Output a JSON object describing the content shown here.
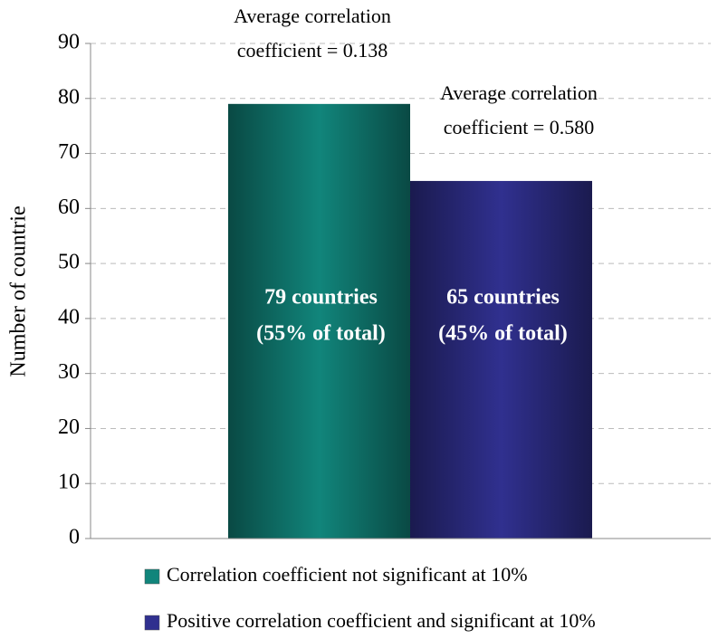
{
  "chart_data": {
    "type": "bar",
    "y_label": "Number of countrie",
    "categories": [
      null
    ],
    "series": [
      {
        "name": "Correlation coefficient not significant at 10%",
        "color": "#11857b",
        "values": [
          79
        ],
        "value_labels": [
          [
            "79 countries",
            "(55% of total)"
          ]
        ]
      },
      {
        "name": "Positive correlation coefficient and significant at 10%",
        "color": "#30308f",
        "values": [
          65
        ],
        "value_labels": [
          [
            "65 countries",
            "(45% of total)"
          ]
        ]
      }
    ],
    "annotations": [
      {
        "lines": [
          "Average correlation",
          "coefficient = 0.138"
        ]
      },
      {
        "lines": [
          "Average correlation",
          "coefficient = 0.580"
        ]
      }
    ],
    "ylim": [
      0,
      90
    ],
    "yticks": [
      0,
      10,
      20,
      30,
      40,
      50,
      60,
      70,
      80,
      90
    ],
    "grid": true,
    "legend": "bottom"
  }
}
